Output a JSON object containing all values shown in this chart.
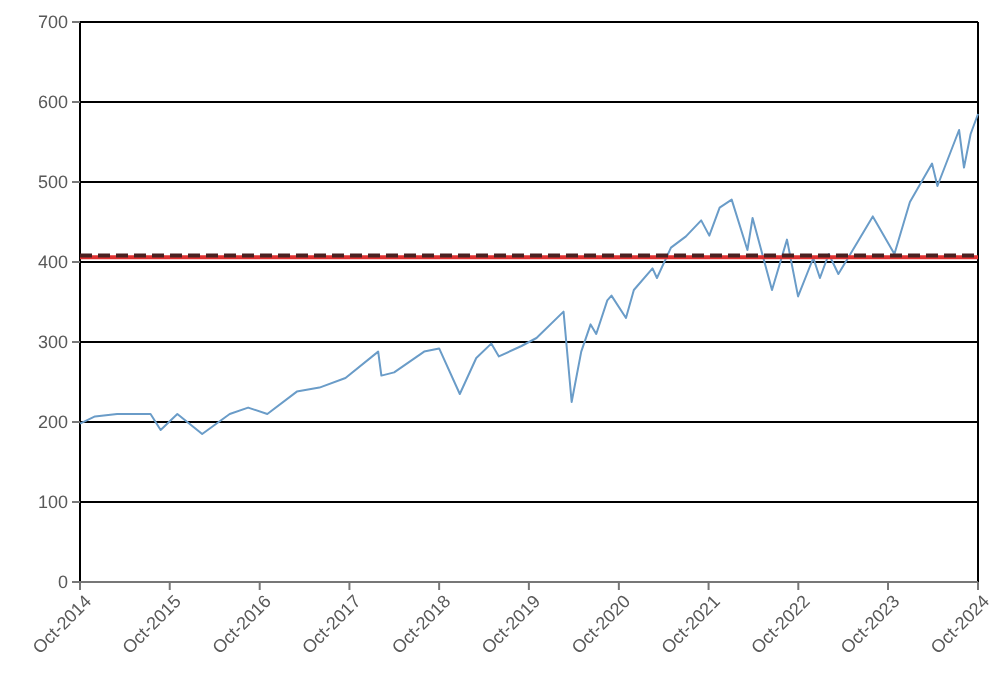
{
  "chart_data": {
    "type": "line",
    "x": [
      "2014-10-01",
      "2014-12-01",
      "2015-03-01",
      "2015-07-15",
      "2015-08-25",
      "2015-11-01",
      "2016-02-10",
      "2016-06-01",
      "2016-08-15",
      "2016-11-01",
      "2017-03-01",
      "2017-06-01",
      "2017-09-15",
      "2018-01-26",
      "2018-02-08",
      "2018-04-01",
      "2018-08-01",
      "2018-10-01",
      "2018-12-24",
      "2019-03-01",
      "2019-05-01",
      "2019-06-01",
      "2019-09-01",
      "2019-11-01",
      "2020-02-19",
      "2020-03-23",
      "2020-05-01",
      "2020-06-08",
      "2020-07-01",
      "2020-08-15",
      "2020-09-01",
      "2020-10-30",
      "2020-12-01",
      "2021-02-15",
      "2021-03-05",
      "2021-05-01",
      "2021-07-01",
      "2021-09-01",
      "2021-10-04",
      "2021-11-15",
      "2022-01-03",
      "2022-03-08",
      "2022-03-29",
      "2022-06-16",
      "2022-08-16",
      "2022-09-30",
      "2022-12-01",
      "2022-12-28",
      "2023-02-02",
      "2023-03-13",
      "2023-05-01",
      "2023-07-31",
      "2023-10-27",
      "2023-12-29",
      "2024-03-28",
      "2024-04-19",
      "2024-07-16",
      "2024-08-05",
      "2024-09-01",
      "2024-10-01"
    ],
    "series": [
      {
        "color": "#6a9cc8",
        "values": [
          198,
          207,
          210,
          210,
          190,
          210,
          185,
          210,
          218,
          210,
          238,
          243,
          255,
          288,
          258,
          262,
          288,
          292,
          235,
          280,
          298,
          282,
          295,
          305,
          338,
          225,
          288,
          322,
          310,
          352,
          358,
          330,
          365,
          392,
          380,
          418,
          432,
          452,
          433,
          468,
          478,
          415,
          455,
          365,
          428,
          357,
          405,
          380,
          410,
          385,
          410,
          457,
          410,
          475,
          523,
          495,
          565,
          518,
          560,
          585
        ]
      }
    ],
    "xlim": [
      "2014-10-01",
      "2024-10-01"
    ],
    "xticks": [
      {
        "value": "2014-10-01",
        "label": "Oct-2014"
      },
      {
        "value": "2015-10-01",
        "label": "Oct-2015"
      },
      {
        "value": "2016-10-01",
        "label": "Oct-2016"
      },
      {
        "value": "2017-10-01",
        "label": "Oct-2017"
      },
      {
        "value": "2018-10-01",
        "label": "Oct-2018"
      },
      {
        "value": "2019-10-01",
        "label": "Oct-2019"
      },
      {
        "value": "2020-10-01",
        "label": "Oct-2020"
      },
      {
        "value": "2021-10-01",
        "label": "Oct-2021"
      },
      {
        "value": "2022-10-01",
        "label": "Oct-2022"
      },
      {
        "value": "2023-10-01",
        "label": "Oct-2023"
      },
      {
        "value": "2024-10-01",
        "label": "Oct-2024"
      }
    ],
    "ylim": [
      0,
      700
    ],
    "yticks": [
      0,
      100,
      200,
      300,
      400,
      500,
      600,
      700
    ],
    "grid": "y",
    "ref_lines": [
      {
        "axis": "y",
        "value": 406,
        "color": "#e03030",
        "line_style": "solid"
      },
      {
        "axis": "y",
        "value": 408,
        "color": "#4a2020",
        "line_style": "dashed"
      }
    ]
  }
}
